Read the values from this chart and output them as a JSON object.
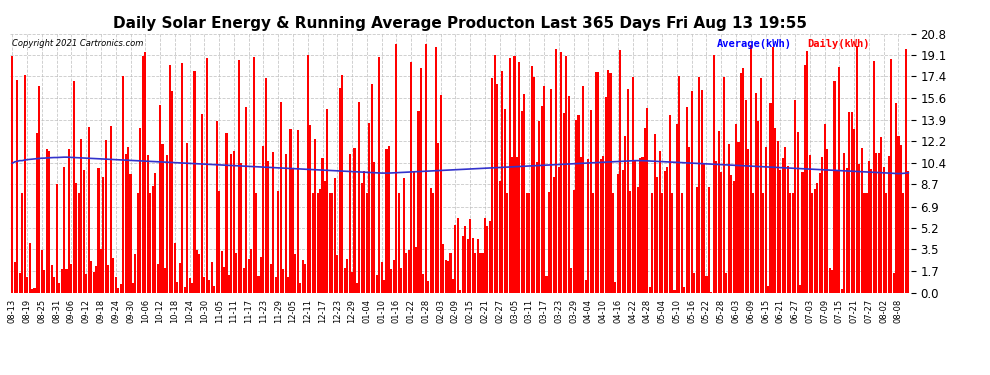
{
  "title": "Daily Solar Energy & Running Average Producton Last 365 Days Fri Aug 13 19:55",
  "copyright": "Copyright 2021 Cartronics.com",
  "legend_avg": "Average(kWh)",
  "legend_daily": "Daily(kWh)",
  "yticks": [
    0.0,
    1.7,
    3.5,
    5.2,
    6.9,
    8.7,
    10.4,
    12.2,
    13.9,
    15.6,
    17.4,
    19.1,
    20.8
  ],
  "ymax": 20.8,
  "ymin": 0.0,
  "bar_color": "#ff0000",
  "avg_line_color": "#3333cc",
  "background_color": "#ffffff",
  "grid_color": "#bbbbbb",
  "title_fontsize": 11,
  "bar_width": 0.85,
  "num_bars": 365,
  "avg_line_values": [
    10.4,
    10.5,
    10.55,
    10.6,
    10.6,
    10.65,
    10.68,
    10.7,
    10.72,
    10.74,
    10.76,
    10.78,
    10.8,
    10.8,
    10.82,
    10.83,
    10.84,
    10.85,
    10.85,
    10.86,
    10.87,
    10.88,
    10.88,
    10.87,
    10.86,
    10.85,
    10.84,
    10.83,
    10.82,
    10.81,
    10.8,
    10.79,
    10.78,
    10.77,
    10.76,
    10.75,
    10.74,
    10.73,
    10.72,
    10.71,
    10.7,
    10.69,
    10.68,
    10.67,
    10.66,
    10.65,
    10.64,
    10.63,
    10.62,
    10.61,
    10.6,
    10.59,
    10.58,
    10.57,
    10.56,
    10.55,
    10.54,
    10.53,
    10.52,
    10.51,
    10.5,
    10.49,
    10.48,
    10.47,
    10.46,
    10.45,
    10.44,
    10.43,
    10.42,
    10.41,
    10.4,
    10.39,
    10.38,
    10.37,
    10.36,
    10.35,
    10.34,
    10.33,
    10.32,
    10.31,
    10.3,
    10.29,
    10.28,
    10.27,
    10.26,
    10.25,
    10.24,
    10.23,
    10.22,
    10.21,
    10.2,
    10.19,
    10.18,
    10.17,
    10.16,
    10.15,
    10.14,
    10.13,
    10.12,
    10.11,
    10.1,
    10.09,
    10.08,
    10.07,
    10.06,
    10.05,
    10.04,
    10.03,
    10.02,
    10.01,
    10.0,
    9.99,
    9.98,
    9.97,
    9.96,
    9.95,
    9.94,
    9.93,
    9.92,
    9.91,
    9.9,
    9.89,
    9.88,
    9.87,
    9.86,
    9.85,
    9.84,
    9.83,
    9.82,
    9.81,
    9.8,
    9.79,
    9.78,
    9.77,
    9.76,
    9.75,
    9.74,
    9.73,
    9.72,
    9.71,
    9.7,
    9.69,
    9.68,
    9.67,
    9.66,
    9.65,
    9.64,
    9.63,
    9.62,
    9.61,
    9.6,
    9.6,
    9.6,
    9.6,
    9.61,
    9.62,
    9.63,
    9.64,
    9.65,
    9.66,
    9.67,
    9.68,
    9.69,
    9.7,
    9.71,
    9.72,
    9.73,
    9.74,
    9.75,
    9.76,
    9.77,
    9.78,
    9.79,
    9.8,
    9.81,
    9.82,
    9.83,
    9.84,
    9.85,
    9.86,
    9.87,
    9.88,
    9.89,
    9.9,
    9.91,
    9.92,
    9.93,
    9.94,
    9.95,
    9.96,
    9.97,
    9.98,
    9.99,
    10.0,
    10.01,
    10.02,
    10.03,
    10.04,
    10.05,
    10.06,
    10.07,
    10.08,
    10.09,
    10.1,
    10.11,
    10.12,
    10.13,
    10.14,
    10.15,
    10.16,
    10.17,
    10.18,
    10.19,
    10.2,
    10.21,
    10.22,
    10.23,
    10.24,
    10.25,
    10.26,
    10.27,
    10.28,
    10.29,
    10.3,
    10.31,
    10.32,
    10.33,
    10.34,
    10.35,
    10.36,
    10.37,
    10.38,
    10.39,
    10.4,
    10.41,
    10.42,
    10.43,
    10.44,
    10.45,
    10.46,
    10.47,
    10.48,
    10.49,
    10.5,
    10.51,
    10.52,
    10.53,
    10.54,
    10.55,
    10.56,
    10.57,
    10.58,
    10.59,
    10.6,
    10.6,
    10.6,
    10.6,
    10.59,
    10.58,
    10.57,
    10.56,
    10.55,
    10.54,
    10.53,
    10.52,
    10.51,
    10.5,
    10.49,
    10.48,
    10.47,
    10.46,
    10.45,
    10.44,
    10.43,
    10.42,
    10.41,
    10.4,
    10.39,
    10.38,
    10.37,
    10.36,
    10.35,
    10.34,
    10.33,
    10.32,
    10.31,
    10.3,
    10.29,
    10.28,
    10.27,
    10.26,
    10.25,
    10.24,
    10.23,
    10.22,
    10.21,
    10.2,
    10.19,
    10.18,
    10.17,
    10.16,
    10.15,
    10.14,
    10.13,
    10.12,
    10.11,
    10.1,
    10.09,
    10.08,
    10.07,
    10.06,
    10.05,
    10.04,
    10.03,
    10.02,
    10.01,
    10.0,
    9.99,
    9.98,
    9.97,
    9.96,
    9.95,
    9.94,
    9.93,
    9.92,
    9.91,
    9.9,
    9.89,
    9.88,
    9.87,
    9.86,
    9.85,
    9.84,
    9.83,
    9.82,
    9.81,
    9.8,
    9.79,
    9.78,
    9.77,
    9.76,
    9.75,
    9.74,
    9.73,
    9.72,
    9.71,
    9.7,
    9.69,
    9.68,
    9.67,
    9.66,
    9.65,
    9.64,
    9.63,
    9.62,
    9.61,
    9.6,
    9.59,
    9.58,
    9.57,
    9.56,
    9.57,
    9.58,
    9.6,
    9.62
  ],
  "xtick_labels": [
    "08-13",
    "08-19",
    "08-25",
    "08-31",
    "09-06",
    "09-12",
    "09-18",
    "09-24",
    "09-30",
    "10-06",
    "10-12",
    "10-18",
    "10-24",
    "10-30",
    "11-05",
    "11-11",
    "11-17",
    "11-23",
    "11-29",
    "12-05",
    "12-11",
    "12-17",
    "12-23",
    "12-29",
    "01-04",
    "01-10",
    "01-16",
    "01-22",
    "01-28",
    "02-03",
    "02-09",
    "02-15",
    "02-21",
    "02-27",
    "03-05",
    "03-11",
    "03-17",
    "03-23",
    "03-29",
    "04-04",
    "04-10",
    "04-16",
    "04-22",
    "04-28",
    "05-04",
    "05-10",
    "05-16",
    "05-22",
    "05-28",
    "06-03",
    "06-09",
    "06-15",
    "06-21",
    "06-27",
    "07-03",
    "07-09",
    "07-15",
    "07-21",
    "07-27",
    "08-02",
    "08-08"
  ],
  "xtick_spacing": 6
}
